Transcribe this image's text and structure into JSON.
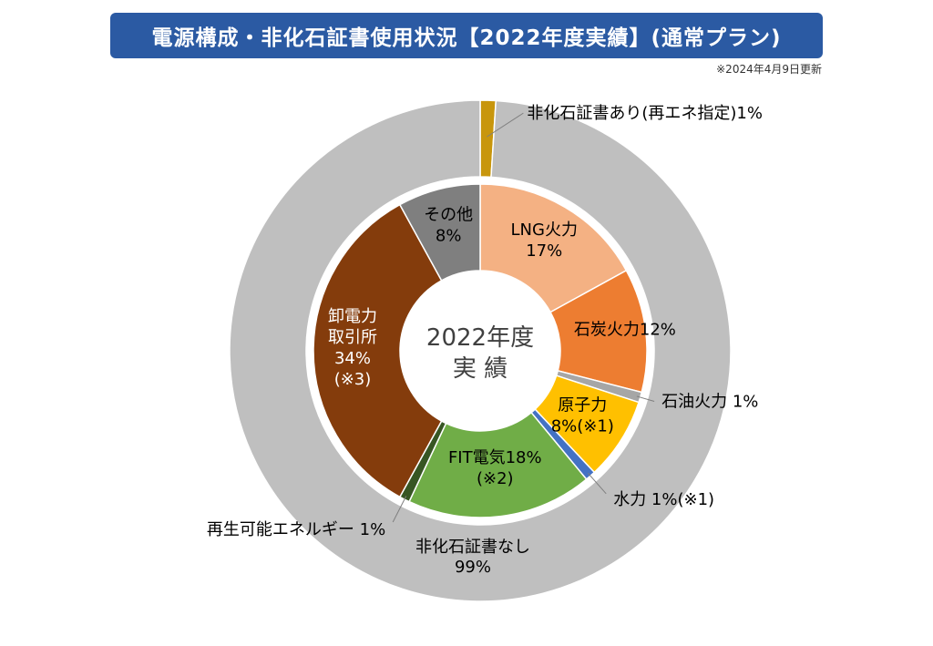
{
  "header": {
    "title": "電源構成・非化石証書使用状況【2022年度実績】(通常プラン)",
    "updated": "※2024年4月9日更新"
  },
  "center_label": [
    "2022年度",
    "実 績"
  ],
  "chart_data": [
    {
      "type": "pie",
      "ring": "outer",
      "slices": [
        {
          "name": "非化石証書あり(再エネ指定)",
          "value": 1,
          "color": "#c8960c",
          "label": "非化石証書あり(再エネ指定)1%"
        },
        {
          "name": "非化石証書なし",
          "value": 99,
          "color": "#bfbfbf",
          "label_lines": [
            "非化石証書なし",
            "99%"
          ]
        }
      ]
    },
    {
      "type": "pie",
      "ring": "inner",
      "slices": [
        {
          "name": "LNG火力",
          "value": 17,
          "color": "#f4b183",
          "label_lines": [
            "LNG火力",
            "17%"
          ]
        },
        {
          "name": "石炭火力",
          "value": 12,
          "color": "#ed7d31",
          "label_lines": [
            "石炭火力12%"
          ]
        },
        {
          "name": "石油火力",
          "value": 1,
          "color": "#a6a6a6",
          "label": "石油火力 1%"
        },
        {
          "name": "原子力",
          "value": 8,
          "color": "#ffc000",
          "label_lines": [
            "原子力",
            "8%(※1)"
          ]
        },
        {
          "name": "水力",
          "value": 1,
          "color": "#4472c4",
          "label": "水力 1%(※1)"
        },
        {
          "name": "FIT電気",
          "value": 18,
          "color": "#70ad47",
          "label_lines": [
            "FIT電気18%",
            "(※2)"
          ]
        },
        {
          "name": "再生可能エネルギー",
          "value": 1,
          "color": "#375623",
          "label": "再生可能エネルギー 1%"
        },
        {
          "name": "卸電力取引所",
          "value": 34,
          "color": "#843c0c",
          "label_lines": [
            "卸電力",
            "取引所",
            "34%",
            "(※3)"
          ]
        },
        {
          "name": "その他",
          "value": 8,
          "color": "#7f7f7f",
          "label_lines": [
            "その他",
            "8%"
          ]
        }
      ]
    }
  ]
}
